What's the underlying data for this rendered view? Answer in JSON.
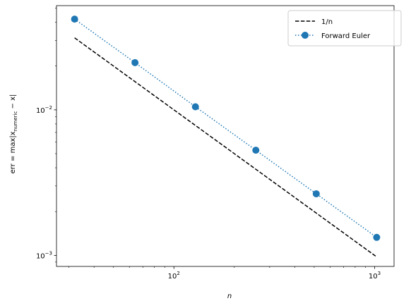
{
  "chart_data": {
    "type": "line",
    "x_scale": "log",
    "y_scale": "log",
    "xlim": [
      26,
      1250
    ],
    "ylim": [
      0.00084,
      0.052
    ],
    "xlabel": "n",
    "ylabel": "err = max|x_numeric − x|",
    "ylabel_parts": {
      "prefix": "err = max|x",
      "subscript": "numeric",
      "suffix": " − x|"
    },
    "x_major_ticks": [
      {
        "value": 100,
        "base": "10",
        "exp": "2"
      },
      {
        "value": 1000,
        "base": "10",
        "exp": "3"
      }
    ],
    "y_major_ticks": [
      {
        "value": 0.001,
        "base": "10",
        "exp": "−3"
      },
      {
        "value": 0.01,
        "base": "10",
        "exp": "−2"
      }
    ],
    "grid": false,
    "legend_position": "top-right",
    "series": [
      {
        "name": "1/n",
        "style": "dashed",
        "color": "#000000",
        "marker": "none",
        "x": [
          32,
          1024
        ],
        "y": [
          0.03125,
          0.0009765625
        ]
      },
      {
        "name": "Forward Euler",
        "style": "dotted",
        "color": "#1f77b4",
        "marker": "circle",
        "x": [
          32,
          64,
          128,
          256,
          512,
          1024
        ],
        "y": [
          0.042,
          0.0211,
          0.0105,
          0.00528,
          0.00265,
          0.00133
        ]
      }
    ]
  }
}
